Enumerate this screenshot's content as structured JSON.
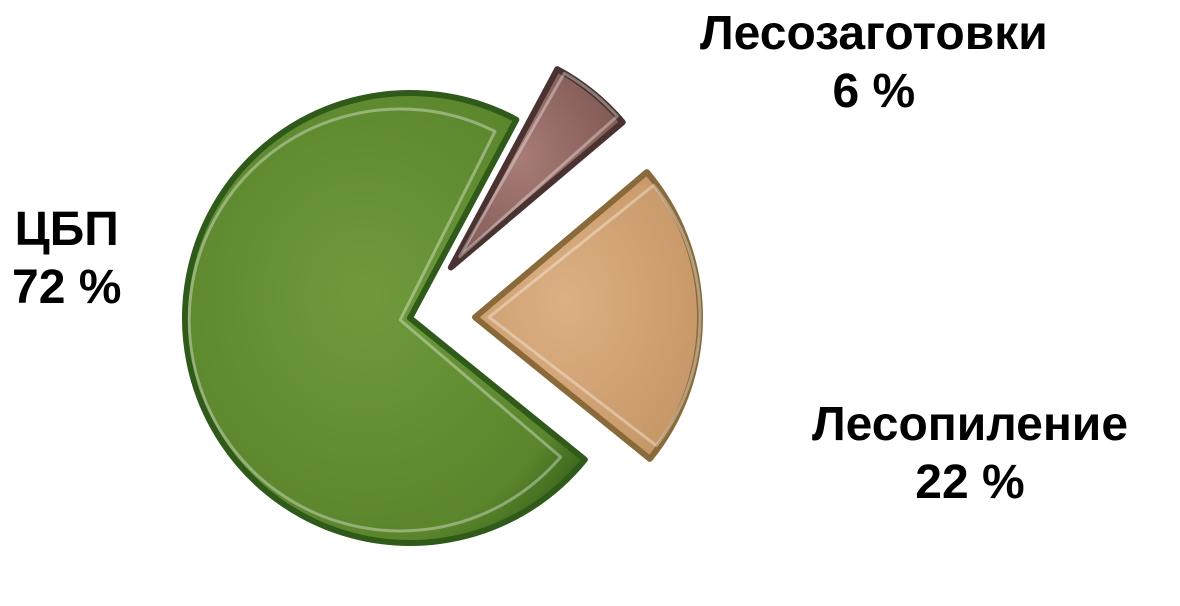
{
  "chart_data": {
    "type": "pie",
    "title": "",
    "slices": [
      {
        "name": "ЦБП",
        "value": 72,
        "value_label": "72 %",
        "color": "#5f8a30",
        "edge_color": "#2f5a1a",
        "exploded": false
      },
      {
        "name": "Лесозаготовки",
        "value": 6,
        "value_label": "6 %",
        "color": "#9a6d68",
        "edge_color": "#4a3230",
        "exploded": true
      },
      {
        "name": "Лесопиление",
        "value": 22,
        "value_label": "22 %",
        "color": "#d4a677",
        "edge_color": "#8a6a3a",
        "exploded": true
      }
    ],
    "legend": "none"
  }
}
